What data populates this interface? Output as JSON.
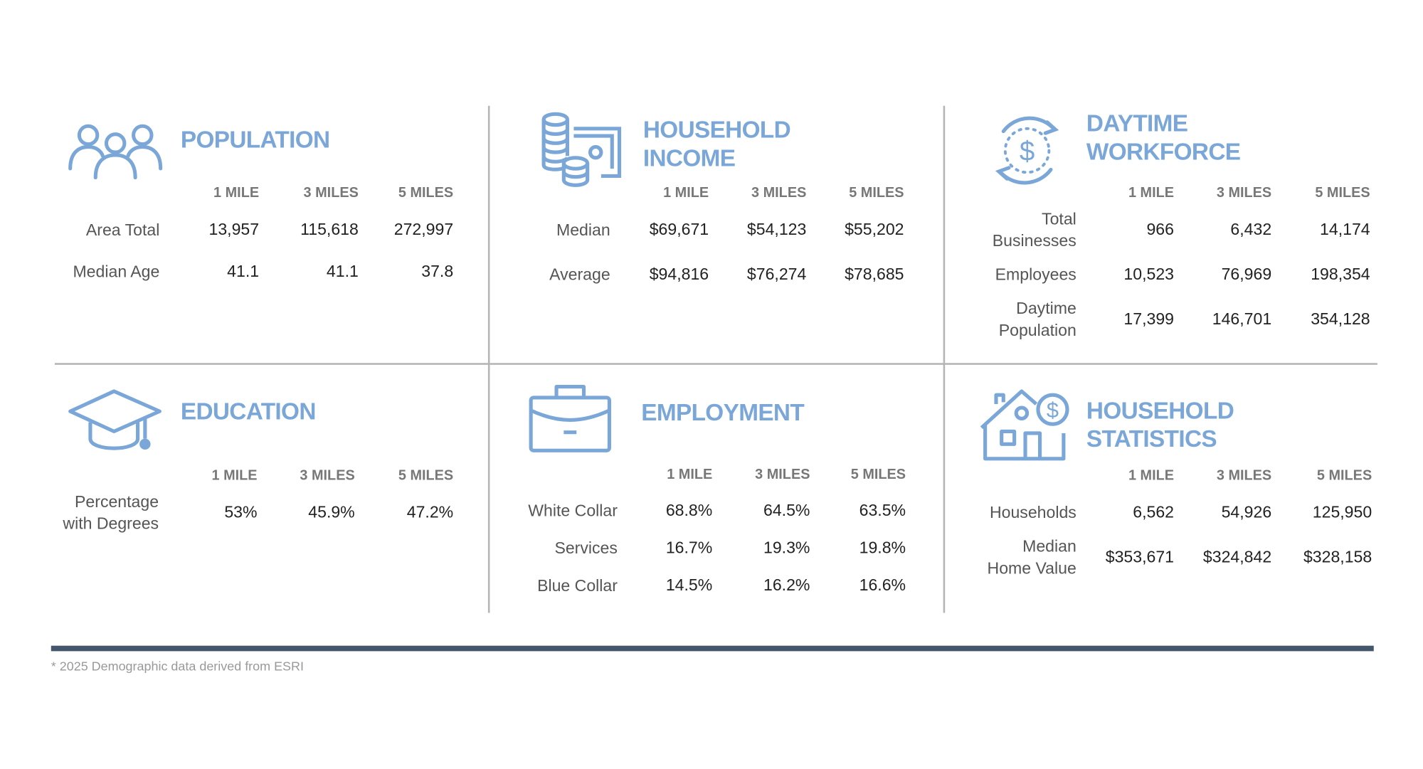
{
  "colors": {
    "accent": "#7aa7d8",
    "divider": "#b5b5b5",
    "footer_bar": "#44566b"
  },
  "footnote": "* 2025 Demographic data derived from ESRI",
  "panels": [
    {
      "id": "population",
      "icon": "people-icon",
      "title": [
        "POPULATION"
      ],
      "headers": [
        "1 MILE",
        "3 MILES",
        "5 MILES"
      ],
      "rows": [
        {
          "label": [
            "Area Total"
          ],
          "values": [
            "13,957",
            "115,618",
            "272,997"
          ]
        },
        {
          "label": [
            "Median Age"
          ],
          "values": [
            "41.1",
            "41.1",
            "37.8"
          ]
        }
      ]
    },
    {
      "id": "household-income",
      "icon": "coins-cash-icon",
      "title": [
        "HOUSEHOLD",
        "INCOME"
      ],
      "headers": [
        "1 MILE",
        "3 MILES",
        "5 MILES"
      ],
      "rows": [
        {
          "label": [
            "Median"
          ],
          "values": [
            "$69,671",
            "$54,123",
            "$55,202"
          ]
        },
        {
          "label": [
            "Average"
          ],
          "values": [
            "$94,816",
            "$76,274",
            "$78,685"
          ]
        }
      ]
    },
    {
      "id": "daytime-workforce",
      "icon": "dollar-cycle-icon",
      "title": [
        "DAYTIME",
        "WORKFORCE"
      ],
      "headers": [
        "1 MILE",
        "3 MILES",
        "5 MILES"
      ],
      "rows": [
        {
          "label": [
            "Total",
            "Businesses"
          ],
          "values": [
            "966",
            "6,432",
            "14,174"
          ]
        },
        {
          "label": [
            "Employees"
          ],
          "values": [
            "10,523",
            "76,969",
            "198,354"
          ]
        },
        {
          "label": [
            "Daytime",
            "Population"
          ],
          "values": [
            "17,399",
            "146,701",
            "354,128"
          ]
        }
      ]
    },
    {
      "id": "education",
      "icon": "graduation-cap-icon",
      "title": [
        "EDUCATION"
      ],
      "headers": [
        "1 MILE",
        "3 MILES",
        "5 MILES"
      ],
      "rows": [
        {
          "label": [
            "Percentage",
            "with Degrees"
          ],
          "values": [
            "53%",
            "45.9%",
            "47.2%"
          ]
        }
      ]
    },
    {
      "id": "employment",
      "icon": "briefcase-icon",
      "title": [
        "EMPLOYMENT"
      ],
      "headers": [
        "1 MILE",
        "3 MILES",
        "5 MILES"
      ],
      "rows": [
        {
          "label": [
            "White Collar"
          ],
          "values": [
            "68.8%",
            "64.5%",
            "63.5%"
          ]
        },
        {
          "label": [
            "Services"
          ],
          "values": [
            "16.7%",
            "19.3%",
            "19.8%"
          ]
        },
        {
          "label": [
            "Blue Collar"
          ],
          "values": [
            "14.5%",
            "16.2%",
            "16.6%"
          ]
        }
      ]
    },
    {
      "id": "household-statistics",
      "icon": "house-dollar-icon",
      "title": [
        "HOUSEHOLD",
        "STATISTICS"
      ],
      "headers": [
        "1 MILE",
        "3 MILES",
        "5 MILES"
      ],
      "rows": [
        {
          "label": [
            "Households"
          ],
          "values": [
            "6,562",
            "54,926",
            "125,950"
          ]
        },
        {
          "label": [
            "Median",
            "Home Value"
          ],
          "values": [
            "$353,671",
            "$324,842",
            "$328,158"
          ]
        }
      ]
    }
  ]
}
